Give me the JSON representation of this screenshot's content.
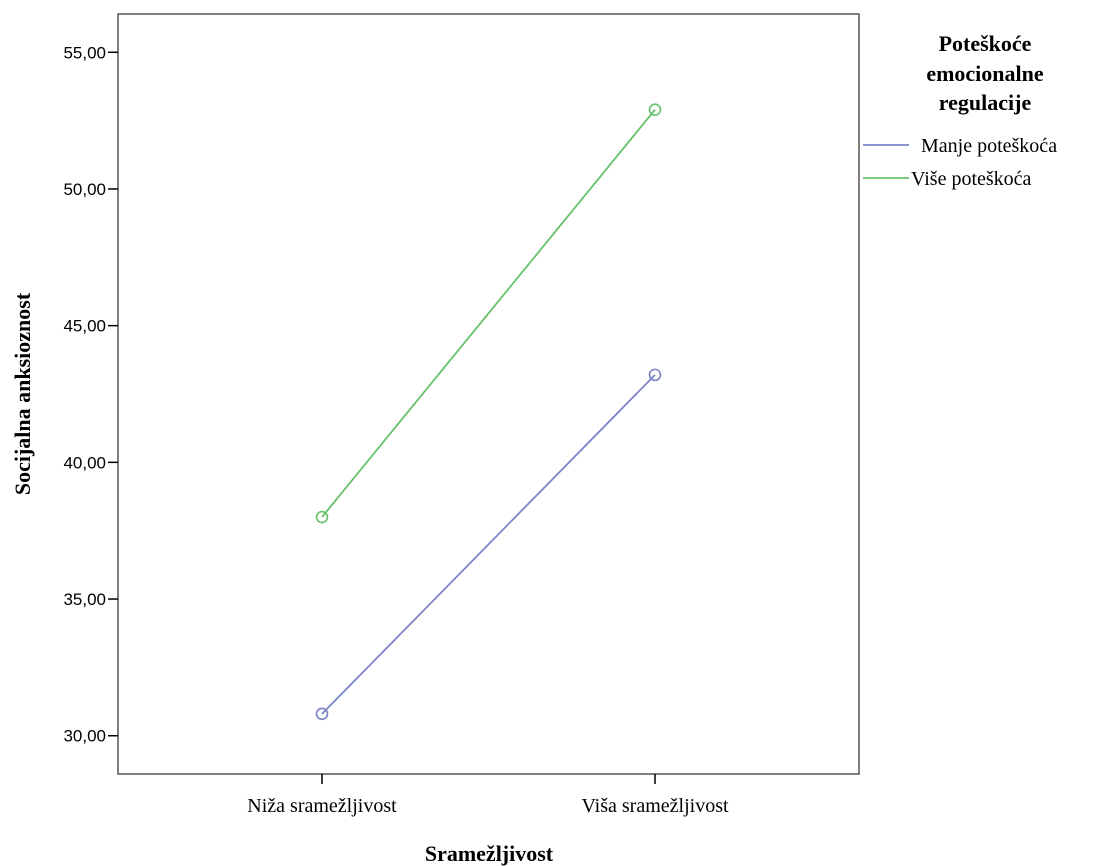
{
  "chart_data": {
    "type": "line",
    "title": "",
    "xlabel": "Sramežljivost",
    "ylabel": "Socijalna anksioznost",
    "categories": [
      "Niža sramežljivost",
      "Viša sramežljivost"
    ],
    "ylim": [
      28.6,
      56.4
    ],
    "yticks": [
      "30,00",
      "35,00",
      "40,00",
      "45,00",
      "50,00",
      "55,00"
    ],
    "ytick_values": [
      30,
      35,
      40,
      45,
      50,
      55
    ],
    "grid": false,
    "legend": {
      "title_lines": [
        "Poteškoće",
        "emocionalne",
        "regulacije"
      ],
      "placement": "right"
    },
    "series": [
      {
        "name": "Manje poteškoća",
        "color": "#7b84c8",
        "values": [
          30.8,
          43.2
        ]
      },
      {
        "name": "Više poteškoća",
        "color": "#66c26a",
        "values": [
          38.0,
          52.9
        ]
      }
    ]
  }
}
